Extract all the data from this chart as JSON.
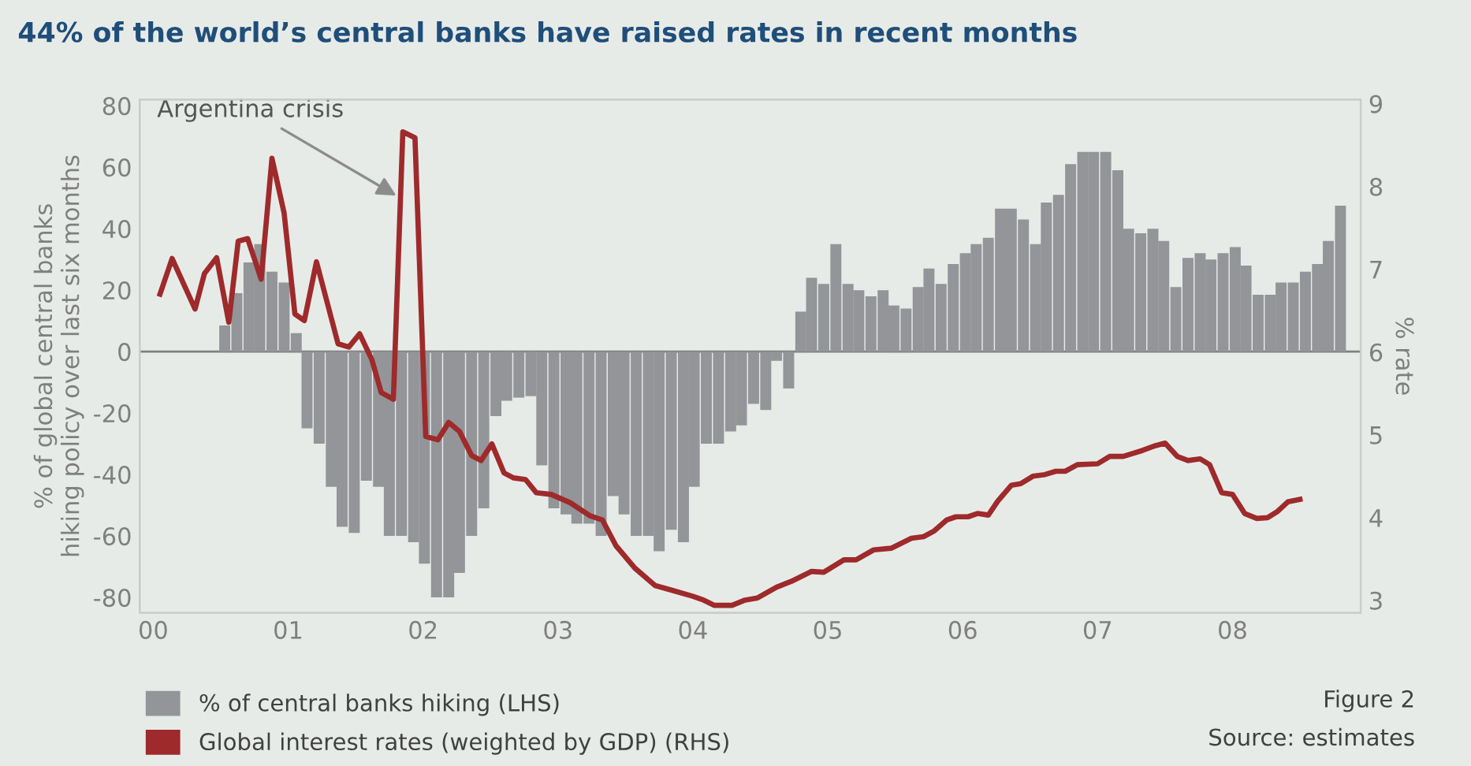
{
  "chart_data": {
    "type": "bar",
    "title": "44% of the world’s central banks have raised rates in recent months",
    "ylabel": "% of global central banks\nhiking policy over last six months",
    "y2label": "% rate",
    "xlim": [
      -0.1,
      8.95
    ],
    "xticks": [
      {
        "value": 0,
        "label": "00"
      },
      {
        "value": 1,
        "label": "01"
      },
      {
        "value": 2,
        "label": "02"
      },
      {
        "value": 3,
        "label": "03"
      },
      {
        "value": 4,
        "label": "04"
      },
      {
        "value": 5,
        "label": "05"
      },
      {
        "value": 6,
        "label": "06"
      },
      {
        "value": 7,
        "label": "07"
      },
      {
        "value": 8,
        "label": "08"
      }
    ],
    "ylim": [
      -85,
      82
    ],
    "yticks": [
      -80,
      -60,
      -40,
      -20,
      0,
      20,
      40,
      60,
      80
    ],
    "y2lim": [
      2.85,
      9.05
    ],
    "y2ticks": [
      3,
      4,
      5,
      6,
      7,
      8,
      9
    ],
    "legend": "bottom",
    "ref_lines": [
      {
        "axis": "y",
        "value": 0,
        "color": "#808080"
      }
    ],
    "annotations": [
      {
        "text": "Argentina crisis",
        "x": 1.83,
        "y": 50
      },
      "Figure 2",
      "Source: estimates"
    ],
    "series": [
      {
        "name": "% of central banks hiking (LHS)",
        "color": "#939598",
        "x": [
          0.53,
          0.62,
          0.71,
          0.79,
          0.88,
          0.97,
          1.06,
          1.14,
          1.23,
          1.32,
          1.4,
          1.49,
          1.58,
          1.67,
          1.75,
          1.84,
          1.93,
          2.01,
          2.1,
          2.19,
          2.27,
          2.36,
          2.45,
          2.54,
          2.62,
          2.71,
          2.8,
          2.88,
          2.97,
          3.06,
          3.14,
          3.23,
          3.32,
          3.41,
          3.49,
          3.58,
          3.67,
          3.75,
          3.84,
          3.93,
          4.01,
          4.1,
          4.19,
          4.28,
          4.36,
          4.45,
          4.54,
          4.62,
          4.71,
          4.8,
          4.88,
          4.97,
          5.06,
          5.15,
          5.23,
          5.32,
          5.41,
          5.49,
          5.58,
          5.67,
          5.75,
          5.84,
          5.93,
          6.02,
          6.1,
          6.19,
          6.28,
          6.36,
          6.45,
          6.54,
          6.62,
          6.71,
          6.8,
          6.89,
          6.97,
          7.06,
          7.15,
          7.23,
          7.32,
          7.41,
          7.49,
          7.58,
          7.67,
          7.76,
          7.84,
          7.93,
          8.02,
          8.1,
          8.19,
          8.28,
          8.36,
          8.45,
          8.54,
          8.63,
          8.71,
          8.8
        ],
        "values": [
          8.5,
          19,
          29,
          35,
          26,
          22.5,
          6,
          -25,
          -30,
          -44,
          -57,
          -59,
          -42,
          -44,
          -60,
          -60,
          -62,
          -69,
          -80,
          -80,
          -72,
          -60,
          -51,
          -21,
          -16,
          -15,
          -14.5,
          -37,
          -51,
          -53,
          -56,
          -56,
          -60,
          -47,
          -53,
          -60,
          -60,
          -65,
          -58,
          -62,
          -44,
          -30,
          -30,
          -26,
          -24,
          -17,
          -19,
          -3,
          -12,
          13,
          24,
          22,
          35,
          22,
          20,
          18,
          20,
          15,
          14,
          21,
          27,
          22,
          28.5,
          32,
          35,
          37,
          46.5,
          46.5,
          43,
          35,
          48.5,
          51,
          61,
          65,
          65,
          65,
          59,
          40,
          38.5,
          40,
          36,
          21,
          30.5,
          32,
          30,
          32,
          34,
          28,
          18.5,
          18.5,
          22.5,
          22.5,
          26,
          28.5,
          36,
          47.5
        ]
      },
      {
        "name": "Global interest rates (weighted by GDP) (RHS)",
        "type": "line",
        "axis": "y2",
        "color": "#9e2a2b",
        "line_style": "solid",
        "marker": "none",
        "x": [
          0.05,
          0.14,
          0.31,
          0.38,
          0.47,
          0.56,
          0.63,
          0.7,
          0.8,
          0.88,
          0.97,
          1.05,
          1.12,
          1.21,
          1.37,
          1.45,
          1.53,
          1.62,
          1.69,
          1.78,
          1.85,
          1.94,
          2.02,
          2.11,
          2.19,
          2.27,
          2.36,
          2.43,
          2.51,
          2.6,
          2.67,
          2.76,
          2.84,
          2.95,
          3.09,
          3.24,
          3.33,
          3.43,
          3.57,
          3.72,
          3.85,
          4.0,
          4.07,
          4.16,
          4.29,
          4.38,
          4.48,
          4.62,
          4.73,
          4.88,
          4.97,
          5.12,
          5.21,
          5.34,
          5.47,
          5.62,
          5.71,
          5.79,
          5.88,
          5.95,
          6.04,
          6.11,
          6.19,
          6.26,
          6.36,
          6.43,
          6.52,
          6.61,
          6.69,
          6.76,
          6.85,
          7.0,
          7.09,
          7.19,
          7.33,
          7.43,
          7.5,
          7.59,
          7.67,
          7.76,
          7.83,
          7.92,
          8.0,
          8.09,
          8.18,
          8.26,
          8.33,
          8.41,
          8.5
        ],
        "values": [
          6.7,
          7.13,
          6.52,
          6.95,
          7.14,
          6.36,
          7.34,
          7.37,
          6.88,
          8.34,
          7.68,
          6.46,
          6.38,
          7.09,
          6.1,
          6.06,
          6.22,
          5.91,
          5.51,
          5.43,
          8.66,
          8.59,
          4.98,
          4.94,
          5.15,
          5.04,
          4.75,
          4.69,
          4.89,
          4.54,
          4.48,
          4.46,
          4.3,
          4.28,
          4.18,
          4.02,
          3.97,
          3.66,
          3.39,
          3.18,
          3.12,
          3.05,
          3.01,
          2.94,
          2.94,
          3.0,
          3.03,
          3.16,
          3.23,
          3.35,
          3.34,
          3.49,
          3.49,
          3.61,
          3.63,
          3.75,
          3.77,
          3.84,
          3.97,
          4.01,
          4.01,
          4.05,
          4.03,
          4.2,
          4.39,
          4.41,
          4.5,
          4.52,
          4.56,
          4.56,
          4.64,
          4.65,
          4.74,
          4.74,
          4.81,
          4.87,
          4.9,
          4.74,
          4.69,
          4.71,
          4.64,
          4.3,
          4.28,
          4.05,
          3.99,
          4.0,
          4.07,
          4.19,
          4.22
        ]
      }
    ]
  }
}
